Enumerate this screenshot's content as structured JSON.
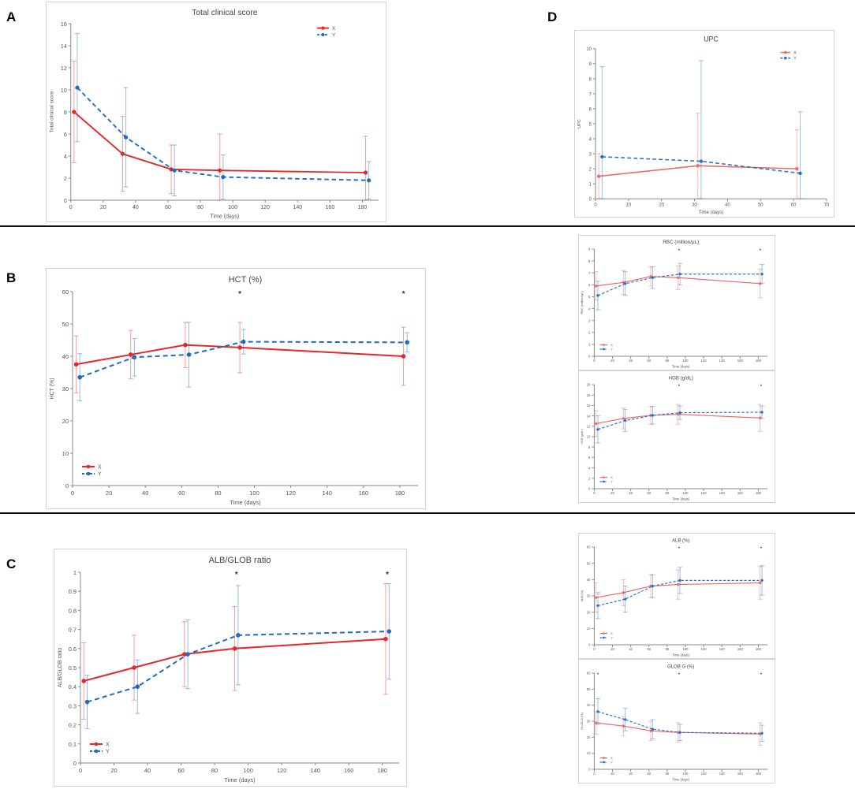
{
  "panels": {
    "A": "A",
    "B": "B",
    "C": "C",
    "D": "D"
  },
  "chart_data": [
    {
      "id": "A",
      "type": "line",
      "title": "Total clinical score",
      "xlabel": "Time (days)",
      "ylabel": "Total clinical score",
      "xlim": [
        0,
        190
      ],
      "ylim": [
        0,
        16
      ],
      "xticks": [
        0,
        20,
        40,
        60,
        80,
        100,
        120,
        140,
        160,
        180
      ],
      "yticks": [
        0,
        2,
        4,
        6,
        8,
        10,
        12,
        14,
        16
      ],
      "legend_position": "top-right",
      "grid": false,
      "series": [
        {
          "name": "X",
          "color": "#e8262a",
          "dashed": false,
          "x": [
            2,
            32,
            62,
            92,
            182
          ],
          "values": [
            8.0,
            4.2,
            2.8,
            2.7,
            2.5
          ],
          "err": [
            4.6,
            3.4,
            2.2,
            3.3,
            3.3
          ]
        },
        {
          "name": "Y",
          "color": "#1f6bbf",
          "dashed": true,
          "x": [
            4,
            34,
            64,
            94,
            184
          ],
          "values": [
            10.2,
            5.7,
            2.7,
            2.1,
            1.8
          ],
          "err": [
            4.9,
            4.5,
            2.3,
            2.0,
            1.7
          ]
        }
      ],
      "annotations": []
    },
    {
      "id": "B",
      "type": "line",
      "title": "HCT (%)",
      "xlabel": "Time (days)",
      "ylabel": "HCT (%)",
      "xlim": [
        0,
        190
      ],
      "ylim": [
        0,
        60
      ],
      "xticks": [
        0,
        20,
        40,
        60,
        80,
        100,
        120,
        140,
        160,
        180
      ],
      "yticks": [
        0,
        10,
        20,
        30,
        40,
        50,
        60
      ],
      "legend_position": "bottom-left",
      "grid": false,
      "series": [
        {
          "name": "X",
          "color": "#e8262a",
          "dashed": false,
          "x": [
            2,
            32,
            62,
            92,
            182
          ],
          "values": [
            37.5,
            40.5,
            43.5,
            42.7,
            40.0
          ],
          "err": [
            8.8,
            7.5,
            7.0,
            7.8,
            9.0
          ]
        },
        {
          "name": "Y",
          "color": "#1f6bbf",
          "dashed": true,
          "x": [
            4,
            34,
            64,
            94,
            184
          ],
          "values": [
            33.5,
            39.7,
            40.5,
            44.5,
            44.3
          ],
          "err": [
            7.3,
            5.8,
            10.0,
            3.8,
            3.0
          ]
        }
      ],
      "annotations": [
        {
          "x": 92,
          "text": "*"
        },
        {
          "x": 182,
          "text": "*"
        }
      ]
    },
    {
      "id": "C",
      "type": "line",
      "title": "ALB/GLOB ratio",
      "xlabel": "Time (days)",
      "ylabel": "ALB/GLOB ratio",
      "xlim": [
        0,
        190
      ],
      "ylim": [
        0,
        1
      ],
      "xticks": [
        0,
        20,
        40,
        60,
        80,
        100,
        120,
        140,
        160,
        180
      ],
      "yticks": [
        0,
        0.1,
        0.2,
        0.3,
        0.4,
        0.5,
        0.6,
        0.7,
        0.8,
        0.9,
        1
      ],
      "legend_position": "bottom-left",
      "grid": false,
      "series": [
        {
          "name": "X",
          "color": "#e8262a",
          "dashed": false,
          "x": [
            2,
            32,
            62,
            92,
            182
          ],
          "values": [
            0.43,
            0.5,
            0.57,
            0.6,
            0.65
          ],
          "err": [
            0.2,
            0.17,
            0.17,
            0.22,
            0.29
          ]
        },
        {
          "name": "Y",
          "color": "#1f6bbf",
          "dashed": true,
          "x": [
            4,
            34,
            64,
            94,
            184
          ],
          "values": [
            0.32,
            0.4,
            0.57,
            0.67,
            0.69
          ],
          "err": [
            0.14,
            0.14,
            0.18,
            0.26,
            0.25
          ]
        }
      ],
      "annotations": [
        {
          "x": 93,
          "text": "*"
        },
        {
          "x": 183,
          "text": "*"
        }
      ]
    },
    {
      "id": "D-UPC",
      "type": "line",
      "title": "UPC",
      "xlabel": "Time (days)",
      "ylabel": "UPC",
      "xlim": [
        0,
        70
      ],
      "ylim": [
        0,
        10
      ],
      "xticks": [
        0,
        10,
        20,
        30,
        40,
        50,
        60,
        70
      ],
      "yticks": [
        0,
        1,
        2,
        3,
        4,
        5,
        6,
        7,
        8,
        9,
        10
      ],
      "legend_position": "top-right",
      "grid": false,
      "series": [
        {
          "name": "X",
          "color": "#f06b6b",
          "dashed": false,
          "x": [
            1,
            31,
            61
          ],
          "values": [
            1.5,
            2.2,
            2.0
          ],
          "err": [
            1.5,
            3.5,
            2.6
          ]
        },
        {
          "name": "Y",
          "color": "#2b73c8",
          "dashed": true,
          "x": [
            2,
            32,
            62
          ],
          "values": [
            2.8,
            2.5,
            1.7
          ],
          "err": [
            6.0,
            6.7,
            4.1
          ]
        }
      ],
      "annotations": []
    },
    {
      "id": "D-RBC",
      "type": "line",
      "title": "RBC (million/μL)",
      "xlabel": "Time (days)",
      "ylabel": "RBC (million/μL)",
      "xlim": [
        0,
        190
      ],
      "ylim": [
        0,
        9
      ],
      "xticks": [
        0,
        20,
        40,
        60,
        80,
        100,
        120,
        140,
        160,
        180
      ],
      "yticks": [
        0,
        1,
        2,
        3,
        4,
        5,
        6,
        7,
        8,
        9
      ],
      "legend_position": "bottom-left",
      "grid": false,
      "series": [
        {
          "name": "X",
          "color": "#f06b6b",
          "dashed": false,
          "x": [
            2,
            32,
            62,
            92,
            182
          ],
          "values": [
            5.9,
            6.2,
            6.7,
            6.6,
            6.1
          ],
          "err": [
            1.2,
            1.0,
            0.8,
            1.0,
            1.2
          ]
        },
        {
          "name": "Y",
          "color": "#2b73c8",
          "dashed": true,
          "x": [
            4,
            34,
            64,
            94,
            184
          ],
          "values": [
            5.1,
            6.1,
            6.6,
            6.9,
            6.9
          ],
          "err": [
            1.2,
            1.0,
            0.9,
            0.9,
            0.8
          ]
        }
      ],
      "annotations": [
        {
          "x": 93,
          "text": "*"
        },
        {
          "x": 182,
          "text": "*"
        }
      ]
    },
    {
      "id": "D-HGB",
      "type": "line",
      "title": "HGB (g/dL)",
      "xlabel": "Time (days)",
      "ylabel": "HGB (g/dL)",
      "xlim": [
        0,
        190
      ],
      "ylim": [
        0,
        20
      ],
      "xticks": [
        0,
        20,
        40,
        60,
        80,
        100,
        120,
        140,
        160,
        180
      ],
      "yticks": [
        0,
        2,
        4,
        6,
        8,
        10,
        12,
        14,
        16,
        18,
        20
      ],
      "legend_position": "bottom-left",
      "grid": false,
      "series": [
        {
          "name": "X",
          "color": "#f06b6b",
          "dashed": false,
          "x": [
            2,
            32,
            62,
            92,
            182
          ],
          "values": [
            12.5,
            13.5,
            14.1,
            14.3,
            13.6
          ],
          "err": [
            2.5,
            2.0,
            1.7,
            1.9,
            2.6
          ]
        },
        {
          "name": "Y",
          "color": "#2b73c8",
          "dashed": true,
          "x": [
            4,
            34,
            64,
            94,
            184
          ],
          "values": [
            11.4,
            13.1,
            14.1,
            14.6,
            14.7
          ],
          "err": [
            2.6,
            2.1,
            1.7,
            1.3,
            1.2
          ]
        }
      ],
      "annotations": [
        {
          "x": 93,
          "text": "*"
        },
        {
          "x": 183,
          "text": "*"
        }
      ]
    },
    {
      "id": "D-ALB",
      "type": "line",
      "title": "ALB (%)",
      "xlabel": "Time (days)",
      "ylabel": "ALB (%)",
      "xlim": [
        0,
        190
      ],
      "ylim": [
        0,
        60
      ],
      "xticks": [
        0,
        20,
        40,
        60,
        80,
        100,
        120,
        140,
        160,
        180
      ],
      "yticks": [
        0,
        10,
        20,
        30,
        40,
        50,
        60
      ],
      "legend_position": "bottom-left",
      "grid": false,
      "series": [
        {
          "name": "X",
          "color": "#f06b6b",
          "dashed": false,
          "x": [
            2,
            32,
            62,
            92,
            182
          ],
          "values": [
            29,
            32,
            36,
            37,
            38
          ],
          "err": [
            9,
            8,
            7,
            9,
            10
          ]
        },
        {
          "name": "Y",
          "color": "#2b73c8",
          "dashed": true,
          "x": [
            4,
            34,
            64,
            94,
            184
          ],
          "values": [
            24,
            28,
            36,
            39.5,
            39.5
          ],
          "err": [
            8,
            8,
            7,
            8,
            9
          ]
        }
      ],
      "annotations": [
        {
          "x": 93,
          "text": "*"
        },
        {
          "x": 183,
          "text": "*"
        }
      ]
    },
    {
      "id": "D-GLOB",
      "type": "line",
      "title": "GLOB G (%)",
      "xlabel": "Time (days)",
      "ylabel": "GLOB G (%)",
      "xlim": [
        0,
        190
      ],
      "ylim": [
        0,
        60
      ],
      "xticks": [
        0,
        20,
        40,
        60,
        80,
        100,
        120,
        140,
        160,
        180
      ],
      "yticks": [
        0,
        10,
        20,
        30,
        40,
        50,
        60
      ],
      "legend_position": "bottom-left",
      "grid": false,
      "series": [
        {
          "name": "X",
          "color": "#f06b6b",
          "dashed": false,
          "x": [
            2,
            32,
            62,
            92,
            182
          ],
          "values": [
            29,
            27,
            24,
            23,
            22
          ],
          "err": [
            7,
            6,
            6,
            6,
            7
          ]
        },
        {
          "name": "Y",
          "color": "#2b73c8",
          "dashed": true,
          "x": [
            4,
            34,
            64,
            94,
            184
          ],
          "values": [
            36,
            31,
            25,
            23,
            22.5
          ],
          "err": [
            8,
            7,
            6,
            5,
            5
          ]
        }
      ],
      "annotations": [
        {
          "x": 4,
          "text": "*"
        },
        {
          "x": 93,
          "text": "*"
        },
        {
          "x": 183,
          "text": "*"
        }
      ]
    }
  ]
}
